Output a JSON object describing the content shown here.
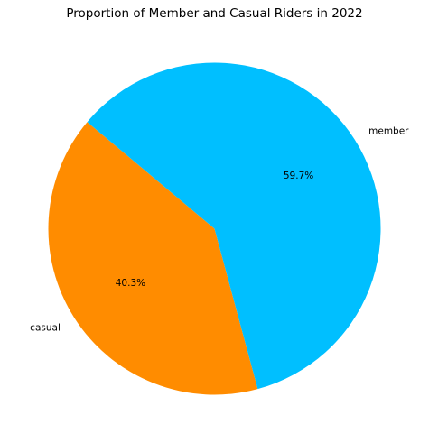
{
  "chart_data": {
    "type": "pie",
    "title": "Proportion of Member and Casual Riders in 2022",
    "categories": [
      "casual",
      "member"
    ],
    "values": [
      40.3,
      59.7
    ],
    "value_labels": [
      "40.3%",
      "59.7%"
    ],
    "colors": [
      "#ff8c00",
      "#00bfff"
    ],
    "start_angle_deg": 140,
    "direction": "counterclockwise"
  }
}
